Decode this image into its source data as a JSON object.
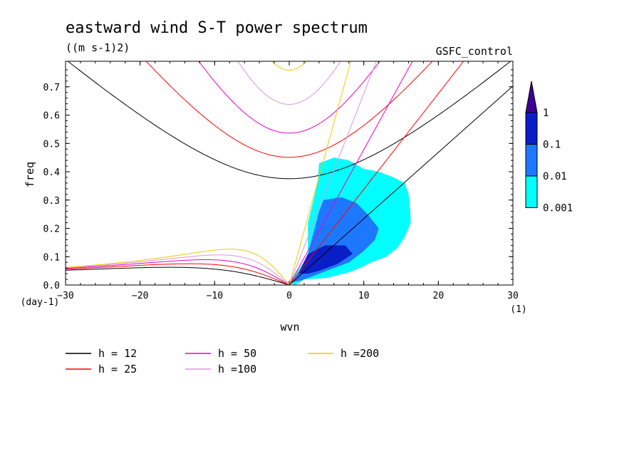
{
  "chart_data": {
    "type": "contour",
    "title": "eastward wind S-T power spectrum",
    "subtitle": "((m s-1)2)",
    "experiment": "GSFC_control",
    "xlabel": "wvn",
    "ylabel": "freq",
    "x_unit": "(1)",
    "y_unit": "(day-1)",
    "xlim": [
      -30,
      30
    ],
    "ylim": [
      0,
      0.79
    ],
    "x_ticks": [
      -30,
      -20,
      -10,
      0,
      10,
      20,
      30
    ],
    "x_tick_labels": [
      "−30",
      "−20",
      "−10",
      "0",
      "10",
      "20",
      "30"
    ],
    "y_ticks": [
      0,
      0.1,
      0.2,
      0.3,
      0.4,
      0.5,
      0.6,
      0.7
    ],
    "y_tick_labels": [
      "0.0",
      "0.1",
      "0.2",
      "0.3",
      "0.4",
      "0.5",
      "0.6",
      "0.7"
    ],
    "colorbar": {
      "levels": [
        "0.001",
        "0.01",
        "0.1",
        "1"
      ],
      "colors": [
        "#00ffff",
        "#1e78ff",
        "#0a1ec8",
        "#3c0096"
      ]
    },
    "shaded_regions": [
      {
        "level": "0.001",
        "color": "#00ffff",
        "points": [
          [
            -1.2,
            0.02
          ],
          [
            0,
            0.01
          ],
          [
            2.5,
            0.1
          ],
          [
            2.5,
            0.22
          ],
          [
            3.8,
            0.36
          ],
          [
            4,
            0.43
          ],
          [
            6,
            0.45
          ],
          [
            8,
            0.44
          ],
          [
            10,
            0.41
          ],
          [
            12,
            0.4
          ],
          [
            14,
            0.38
          ],
          [
            15.5,
            0.36
          ],
          [
            16,
            0.32
          ],
          [
            16.2,
            0.27
          ],
          [
            16.3,
            0.22
          ],
          [
            15.5,
            0.17
          ],
          [
            14.5,
            0.13
          ],
          [
            13,
            0.1
          ],
          [
            11,
            0.08
          ],
          [
            9.5,
            0.06
          ],
          [
            8,
            0.045
          ],
          [
            5,
            0.025
          ],
          [
            2,
            0.02
          ],
          [
            0.8,
            0
          ]
        ]
      },
      {
        "level": "0.01",
        "color": "#1e78ff",
        "points": [
          [
            0.4,
            0.01
          ],
          [
            2.3,
            0.08
          ],
          [
            3,
            0.16
          ],
          [
            4,
            0.26
          ],
          [
            4.6,
            0.3
          ],
          [
            7,
            0.31
          ],
          [
            9,
            0.29
          ],
          [
            10.5,
            0.25
          ],
          [
            12,
            0.2
          ],
          [
            11.5,
            0.16
          ],
          [
            10,
            0.12
          ],
          [
            8,
            0.08
          ],
          [
            5,
            0.05
          ],
          [
            3,
            0.03
          ],
          [
            1.5,
            0.015
          ]
        ]
      },
      {
        "level": "0.1",
        "color": "#0a1ec8",
        "points": [
          [
            1.2,
            0.04
          ],
          [
            2.5,
            0.11
          ],
          [
            4.8,
            0.14
          ],
          [
            7.5,
            0.14
          ],
          [
            8.5,
            0.11
          ],
          [
            6.5,
            0.075
          ],
          [
            4,
            0.05
          ],
          [
            2.5,
            0.04
          ]
        ]
      }
    ],
    "series": [
      {
        "name": "h = 12",
        "color": "#000000",
        "h": 12
      },
      {
        "name": "h = 25",
        "color": "#ff0000",
        "h": 25
      },
      {
        "name": "h = 50",
        "color": "#e600c8",
        "h": 50
      },
      {
        "name": "h =100",
        "color": "#dc96dc",
        "h": 100
      },
      {
        "name": "h =200",
        "color": "#f0c800",
        "h": 200
      }
    ]
  }
}
